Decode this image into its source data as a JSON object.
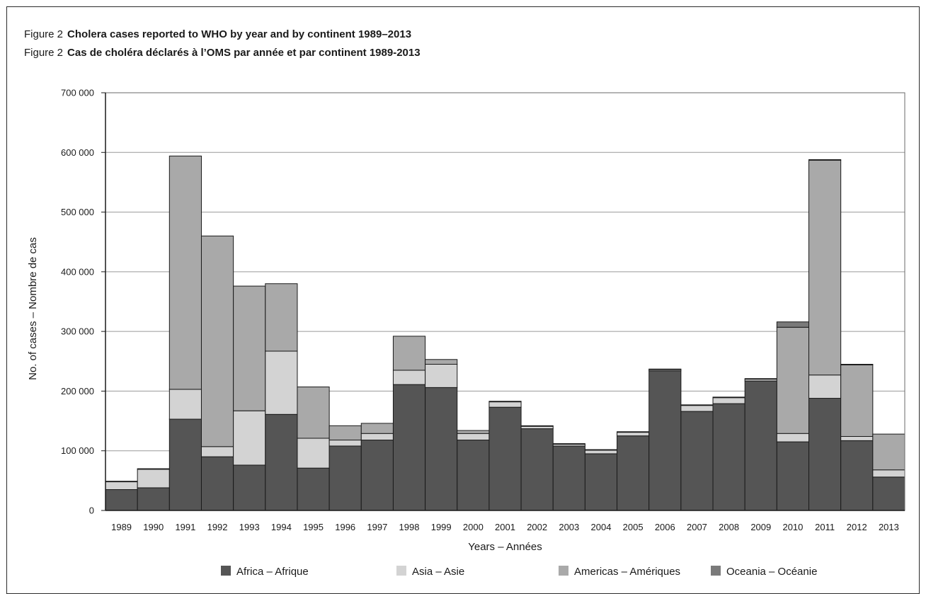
{
  "figure": {
    "line1_label": "Figure 2",
    "line1_title": "Cholera cases reported to WHO by year and by continent 1989–2013",
    "line2_label": "Figure 2",
    "line2_title": "Cas de choléra déclarés à l’OMS par année et par continent 1989-2013"
  },
  "chart_data": {
    "type": "bar",
    "stacked": true,
    "xlabel": "Years – Années",
    "ylabel": "No. of cases – Nombre de cas",
    "ylim": [
      0,
      700000
    ],
    "yticks": [
      0,
      100000,
      200000,
      300000,
      400000,
      500000,
      600000,
      700000
    ],
    "ytick_labels": [
      "0",
      "100 000",
      "200 000",
      "300 000",
      "400 000",
      "500 000",
      "600 000",
      "700 000"
    ],
    "grid": true,
    "legend_position": "bottom",
    "categories": [
      "1989",
      "1990",
      "1991",
      "1992",
      "1993",
      "1994",
      "1995",
      "1996",
      "1997",
      "1998",
      "1999",
      "2000",
      "2001",
      "2002",
      "2003",
      "2004",
      "2005",
      "2006",
      "2007",
      "2008",
      "2009",
      "2010",
      "2011",
      "2012",
      "2013"
    ],
    "series": [
      {
        "name": "Africa – Afrique",
        "color": "#555555",
        "values": [
          35000,
          38000,
          153000,
          90000,
          76000,
          161000,
          71000,
          108000,
          118000,
          211000,
          206000,
          118000,
          173000,
          137000,
          108000,
          95000,
          125000,
          234000,
          166000,
          179000,
          217000,
          115000,
          188000,
          117000,
          56000
        ]
      },
      {
        "name": "Asia – Asie",
        "color": "#d3d3d3",
        "values": [
          13000,
          31000,
          50000,
          17000,
          91000,
          106000,
          50000,
          10000,
          11000,
          24000,
          39000,
          11000,
          9000,
          4000,
          3000,
          6000,
          6000,
          2000,
          10000,
          10000,
          3000,
          14000,
          39000,
          7000,
          12000
        ]
      },
      {
        "name": "Americas – Amériques",
        "color": "#a9a9a9",
        "values": [
          1000,
          1000,
          391000,
          353000,
          209000,
          113000,
          86000,
          24000,
          17000,
          57000,
          8000,
          5000,
          1000,
          1000,
          1000,
          1000,
          1000,
          1000,
          1000,
          1000,
          1000,
          178000,
          360000,
          120000,
          60000
        ]
      },
      {
        "name": "Oceania – Océanie",
        "color": "#7a7a7a",
        "values": [
          0,
          0,
          0,
          0,
          0,
          0,
          0,
          0,
          0,
          0,
          0,
          0,
          0,
          0,
          0,
          0,
          0,
          0,
          0,
          0,
          0,
          9000,
          1000,
          1000,
          0
        ]
      }
    ]
  }
}
